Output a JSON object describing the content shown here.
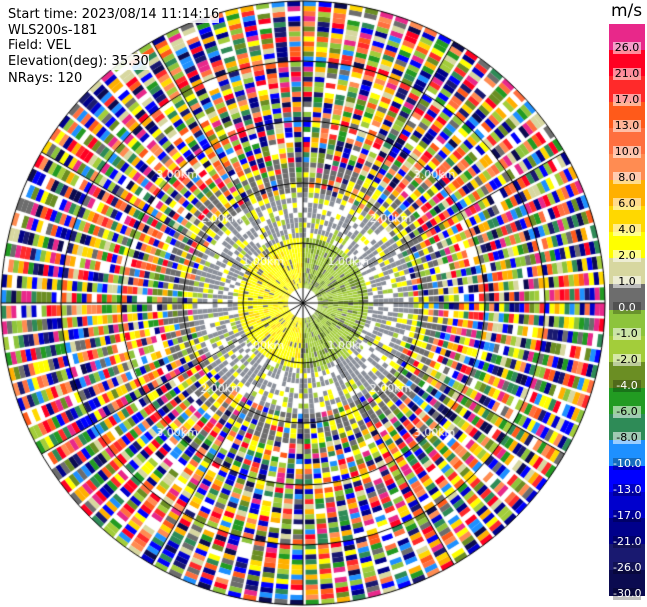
{
  "info": {
    "start_time": "Start time: 2023/08/14 11:14:16",
    "site": "WLS200s-181",
    "field": "Field: VEL",
    "elevation": "Elevation(deg): 35.30",
    "nrays": "NRays: 120"
  },
  "range_rings": [
    "1.00km",
    "2.00km",
    "3.00km"
  ],
  "colorbar": {
    "title": "m/s",
    "levels": [
      {
        "label": "26.0",
        "color": "#e8288a"
      },
      {
        "label": "21.0",
        "color": "#ff0022"
      },
      {
        "label": "17.0",
        "color": "#ff2a2a"
      },
      {
        "label": "13.0",
        "color": "#ff5a1a"
      },
      {
        "label": "10.0",
        "color": "#ff6f3f"
      },
      {
        "label": "8.0",
        "color": "#ff8c52"
      },
      {
        "label": "6.0",
        "color": "#ffb000"
      },
      {
        "label": "4.0",
        "color": "#ffd800"
      },
      {
        "label": "2.0",
        "color": "#ffff00"
      },
      {
        "label": "1.0",
        "color": "#d7d7a0"
      },
      {
        "label": "0.0",
        "color": "#6d6d6d"
      },
      {
        "label": "-1.0",
        "color": "#8dc43c"
      },
      {
        "label": "-2.0",
        "color": "#a3cd3a"
      },
      {
        "label": "-4.0",
        "color": "#6b8e23"
      },
      {
        "label": "-6.0",
        "color": "#229b22"
      },
      {
        "label": "-8.0",
        "color": "#2e8b57"
      },
      {
        "label": "-10.0",
        "color": "#1e90ff"
      },
      {
        "label": "-13.0",
        "color": "#0000ff"
      },
      {
        "label": "-17.0",
        "color": "#0000cd"
      },
      {
        "label": "-21.0",
        "color": "#00008b"
      },
      {
        "label": "-26.0",
        "color": "#191970"
      },
      {
        "label": "-30.0",
        "color": "#0b0b50"
      }
    ]
  }
}
